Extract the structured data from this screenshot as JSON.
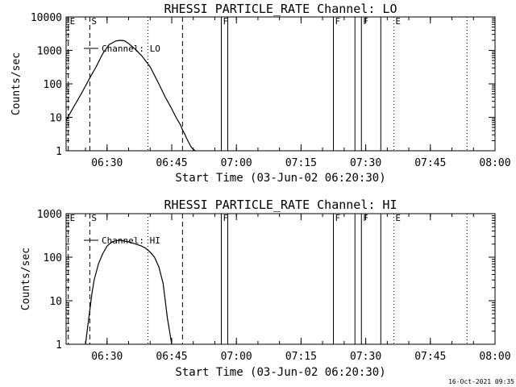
{
  "chart_data": [
    {
      "type": "line",
      "title": "RHESSI PARTICLE_RATE Channel: LO",
      "xlabel": "Start Time (03-Jun-02 06:20:30)",
      "ylabel": "Counts/sec",
      "yscale": "log",
      "ylim": [
        1,
        10000
      ],
      "xlim": [
        "06:20:30",
        "08:00:00"
      ],
      "xticks": [
        "06:30",
        "06:45",
        "07:00",
        "07:15",
        "07:30",
        "07:45",
        "08:00"
      ],
      "yticks": [
        "1",
        "10",
        "100",
        "1000",
        "10000"
      ],
      "legend": "Channel: LO",
      "series": [
        {
          "name": "Channel: LO",
          "x": [
            "06:20:30",
            "06:22:00",
            "06:24:00",
            "06:26:00",
            "06:27:30",
            "06:29:00",
            "06:30:30",
            "06:32:00",
            "06:33:00",
            "06:34:00",
            "06:35:00",
            "06:36:30",
            "06:38:00",
            "06:40:00",
            "06:42:00",
            "06:43:30",
            "06:45:00",
            "06:46:00",
            "06:47:00",
            "06:47:30",
            "06:48:00",
            "06:48:30",
            "06:49:00",
            "06:49:30",
            "06:50:00",
            "06:50:30"
          ],
          "y": [
            8,
            18,
            50,
            150,
            330,
            800,
            1500,
            1900,
            2000,
            1950,
            1600,
            1100,
            700,
            320,
            100,
            40,
            18,
            10,
            6,
            4.2,
            3.2,
            2.3,
            1.7,
            1.3,
            1.1,
            1.0
          ]
        }
      ],
      "markers": [
        {
          "label": "E",
          "time": "06:21:00",
          "style": "dashed"
        },
        {
          "label": "S",
          "time": "06:26:00",
          "style": "dashed"
        },
        {
          "label": "",
          "time": "06:39:30",
          "style": "dotted"
        },
        {
          "label": "",
          "time": "06:47:30",
          "style": "dashed"
        },
        {
          "label": "F",
          "time": "06:56:30",
          "style": "solid"
        },
        {
          "label": "",
          "time": "06:58:00",
          "style": "solid"
        },
        {
          "label": "F",
          "time": "07:22:30",
          "style": "solid"
        },
        {
          "label": "",
          "time": "07:27:30",
          "style": "solid"
        },
        {
          "label": "F",
          "time": "07:29:00",
          "style": "solid"
        },
        {
          "label": "",
          "time": "07:33:30",
          "style": "solid"
        },
        {
          "label": "E",
          "time": "07:36:30",
          "style": "dotted"
        },
        {
          "label": "",
          "time": "07:53:30",
          "style": "dotted"
        }
      ]
    },
    {
      "type": "line",
      "title": "RHESSI PARTICLE_RATE Channel: HI",
      "xlabel": "Start Time (03-Jun-02 06:20:30)",
      "ylabel": "Counts/sec",
      "yscale": "log",
      "ylim": [
        1,
        1000
      ],
      "xlim": [
        "06:20:30",
        "08:00:00"
      ],
      "xticks": [
        "06:30",
        "06:45",
        "07:00",
        "07:15",
        "07:30",
        "07:45",
        "08:00"
      ],
      "yticks": [
        "1",
        "10",
        "100",
        "1000"
      ],
      "legend": "Channel: HI",
      "series": [
        {
          "name": "Channel: HI",
          "x": [
            "06:25:00",
            "06:25:30",
            "06:26:00",
            "06:26:30",
            "06:27:00",
            "06:28:00",
            "06:29:00",
            "06:30:00",
            "06:31:00",
            "06:32:00",
            "06:33:00",
            "06:34:00",
            "06:35:00",
            "06:36:00",
            "06:37:00",
            "06:38:00",
            "06:39:00",
            "06:40:00",
            "06:41:00",
            "06:42:00",
            "06:43:00",
            "06:43:30",
            "06:44:00",
            "06:44:30",
            "06:45:00"
          ],
          "y": [
            1,
            2.5,
            6,
            15,
            30,
            70,
            120,
            180,
            220,
            240,
            245,
            235,
            225,
            210,
            195,
            180,
            160,
            130,
            100,
            60,
            25,
            10,
            4,
            2,
            1
          ]
        }
      ],
      "markers": [
        {
          "label": "E",
          "time": "06:21:00",
          "style": "dashed"
        },
        {
          "label": "S",
          "time": "06:26:00",
          "style": "dashed"
        },
        {
          "label": "",
          "time": "06:39:30",
          "style": "dotted"
        },
        {
          "label": "",
          "time": "06:47:30",
          "style": "dashed"
        },
        {
          "label": "F",
          "time": "06:56:30",
          "style": "solid"
        },
        {
          "label": "",
          "time": "06:58:00",
          "style": "solid"
        },
        {
          "label": "F",
          "time": "07:22:30",
          "style": "solid"
        },
        {
          "label": "",
          "time": "07:27:30",
          "style": "solid"
        },
        {
          "label": "F",
          "time": "07:29:00",
          "style": "solid"
        },
        {
          "label": "",
          "time": "07:33:30",
          "style": "solid"
        },
        {
          "label": "E",
          "time": "07:36:30",
          "style": "dotted"
        },
        {
          "label": "",
          "time": "07:53:30",
          "style": "dotted"
        }
      ]
    }
  ],
  "footer": {
    "timestamp": "16-Oct-2021 09:35"
  }
}
